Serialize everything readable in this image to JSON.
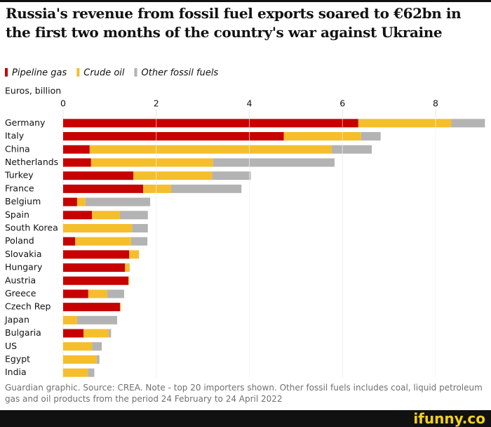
{
  "chart_data": {
    "type": "stacked-bar-horizontal",
    "title": "Russia's revenue from fossil fuel exports soared to €62bn in the first two months of the country's war against Ukraine",
    "axis_label": "Euros, billion",
    "categories": [
      "Germany",
      "Italy",
      "China",
      "Netherlands",
      "Turkey",
      "France",
      "Belgium",
      "Spain",
      "South Korea",
      "Poland",
      "Slovakia",
      "Hungary",
      "Austria",
      "Greece",
      "Czech Rep",
      "Japan",
      "Bulgaria",
      "US",
      "Egypt",
      "India"
    ],
    "series": [
      {
        "name": "Pipeline gas",
        "color": "#c70000",
        "values": [
          6.34,
          4.74,
          0.57,
          0.6,
          1.51,
          1.72,
          0.3,
          0.62,
          0,
          0.26,
          1.42,
          1.33,
          1.4,
          0.54,
          1.22,
          0,
          0.44,
          0,
          0,
          0
        ]
      },
      {
        "name": "Crude oil",
        "color": "#f5be2c",
        "values": [
          2.0,
          1.66,
          5.2,
          2.62,
          1.69,
          0.6,
          0.18,
          0.6,
          1.48,
          1.2,
          0.21,
          0.1,
          0.02,
          0.41,
          0.02,
          0.3,
          0.54,
          0.62,
          0.72,
          0.53
        ]
      },
      {
        "name": "Other fossil fuels",
        "color": "#b3b3b3",
        "values": [
          0.72,
          0.42,
          0.86,
          2.61,
          0.83,
          1.51,
          1.39,
          0.6,
          0.34,
          0.35,
          0,
          0,
          0,
          0.36,
          0,
          0.86,
          0.05,
          0.21,
          0.06,
          0.14
        ]
      }
    ],
    "xlim": [
      0,
      9.1
    ],
    "xticks": [
      0,
      2,
      4,
      6,
      8
    ],
    "grid": true,
    "footer": "Guardian graphic. Source: CREA. Note - top 20 importers shown. Other fossil fuels includes coal, liquid petroleum gas and oil products from the period 24 February to 24 April 2022",
    "watermark": "ifunny.co"
  }
}
